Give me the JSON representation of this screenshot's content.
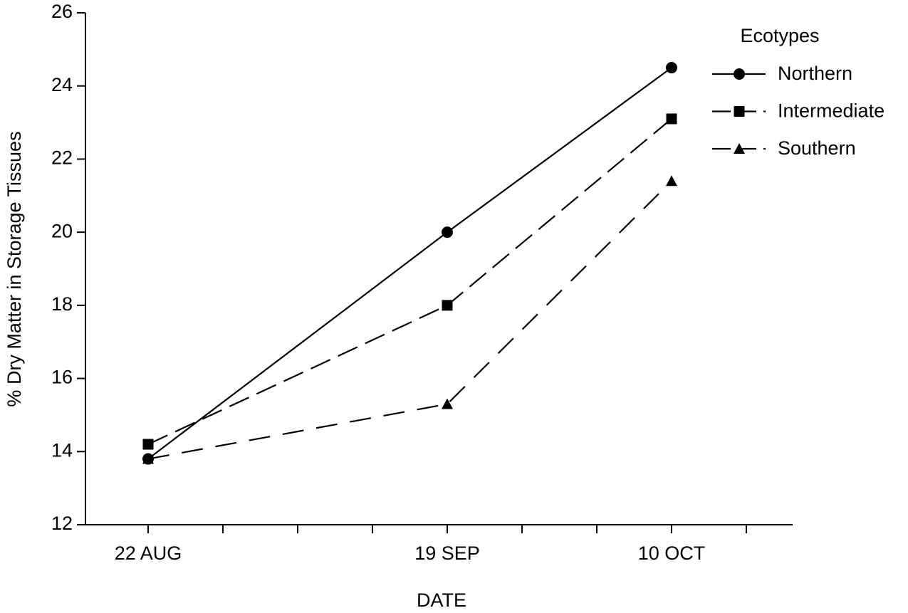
{
  "chart_data": {
    "type": "line",
    "x_label": "DATE",
    "y_label": "% Dry Matter in Storage Tissues",
    "x": [
      "22 AUG",
      "19 SEP",
      "10 OCT"
    ],
    "ylim": [
      12,
      26
    ],
    "yticks": [
      12,
      14,
      16,
      18,
      20,
      22,
      24,
      26
    ],
    "legend_title": "Ecotypes",
    "legend_position": "upper right",
    "series": [
      {
        "name": "Northern",
        "color": "#000000",
        "marker": "circle",
        "line_style": "solid",
        "values": [
          13.8,
          20.0,
          24.5
        ]
      },
      {
        "name": "Intermediate",
        "color": "#000000",
        "marker": "square",
        "line_style": "dashed",
        "values": [
          14.2,
          18.0,
          23.1
        ]
      },
      {
        "name": "Southern",
        "color": "#000000",
        "marker": "triangle",
        "line_style": "long-dashed",
        "values": [
          13.8,
          15.3,
          21.4
        ]
      }
    ]
  }
}
